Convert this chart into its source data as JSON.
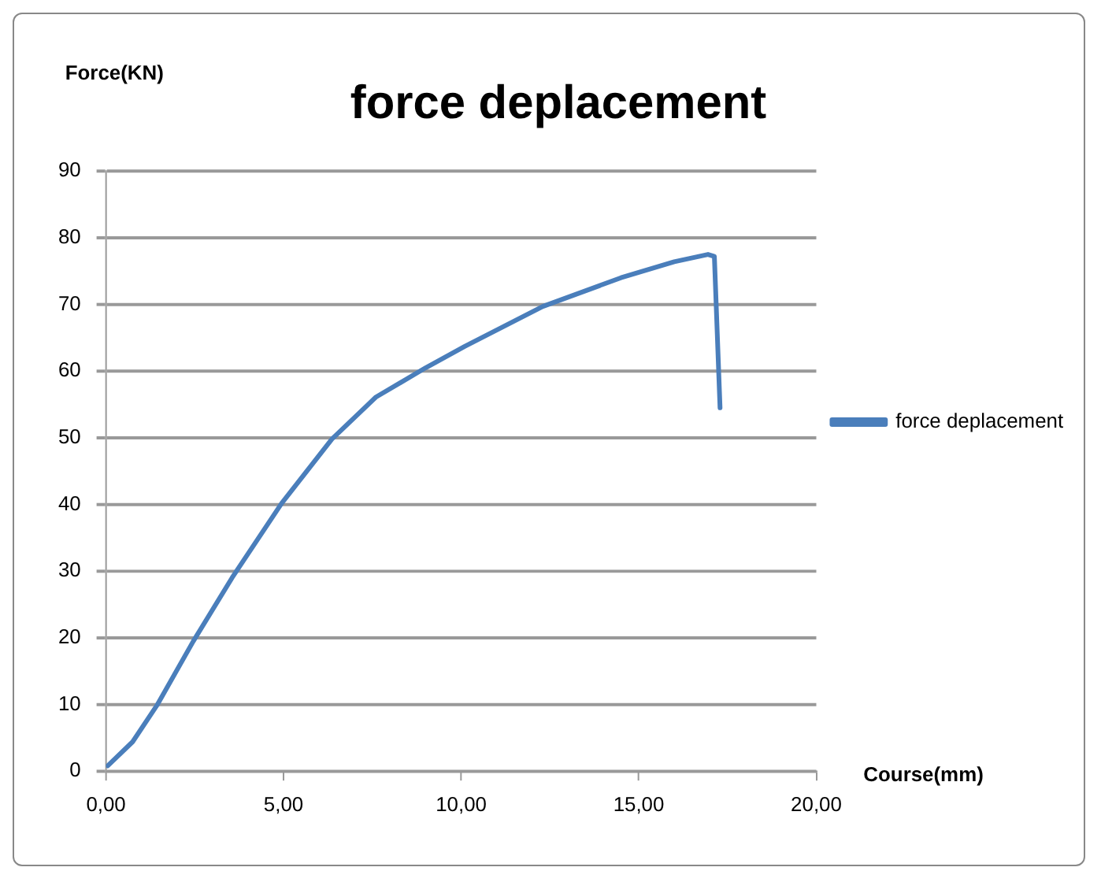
{
  "chart_data": {
    "type": "line",
    "title": "force deplacement",
    "xlabel": "Course(mm)",
    "ylabel": "Force(KN)",
    "x": [
      0.05,
      0.75,
      1.45,
      2.46,
      3.55,
      4.95,
      6.36,
      7.6,
      9.0,
      10.1,
      12.3,
      14.5,
      16.0,
      16.95,
      17.13,
      17.29
    ],
    "series": [
      {
        "name": "force deplacement",
        "color": "#4a7ebb",
        "values": [
          0.8,
          4.4,
          10,
          19.5,
          29,
          40.2,
          49.8,
          56.1,
          60.5,
          63.7,
          69.7,
          74,
          76.4,
          77.5,
          77.2,
          54.5
        ]
      }
    ],
    "xlim": [
      0,
      20
    ],
    "xticks": [
      {
        "value": 0,
        "label": "0,00"
      },
      {
        "value": 5,
        "label": "5,00"
      },
      {
        "value": 10,
        "label": "10,00"
      },
      {
        "value": 15,
        "label": "15,00"
      },
      {
        "value": 20,
        "label": "20,00"
      }
    ],
    "ylim": [
      0,
      90
    ],
    "yticks": [
      0,
      10,
      20,
      30,
      40,
      50,
      60,
      70,
      80,
      90
    ],
    "grid": "y",
    "legend": "right",
    "marker": "none",
    "line_style": "solid"
  }
}
